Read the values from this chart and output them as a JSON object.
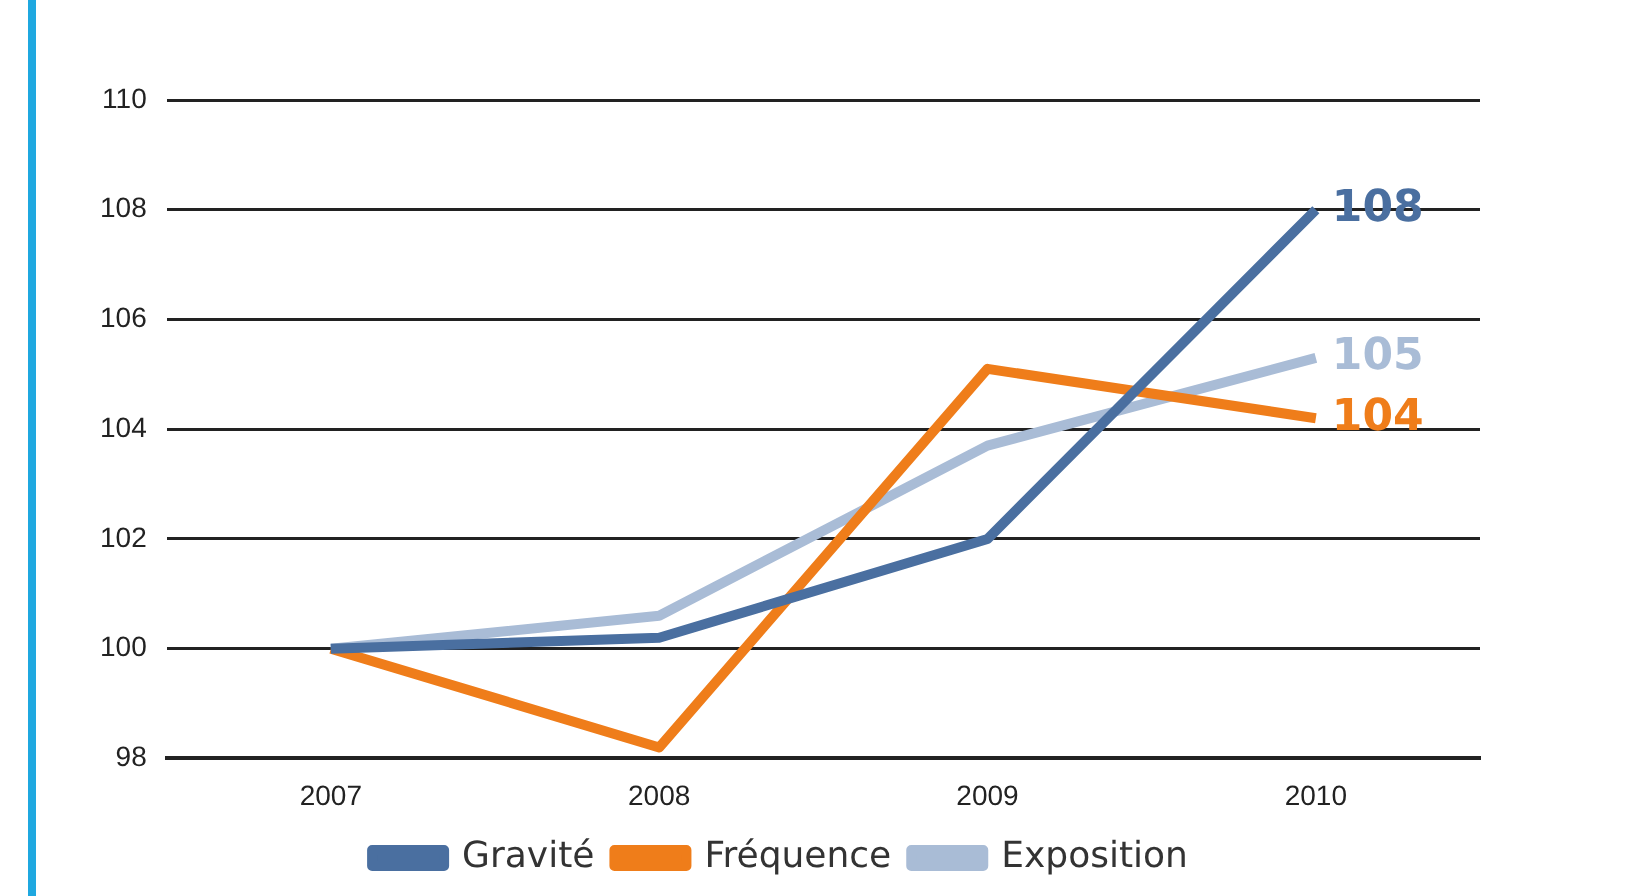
{
  "chart_data": {
    "type": "line",
    "categories": [
      "2007",
      "2008",
      "2009",
      "2010"
    ],
    "series": [
      {
        "name": "Gravité",
        "color": "#4a6fa0",
        "values": [
          100,
          100.2,
          102,
          108
        ],
        "value_labels": [
          null,
          null,
          null,
          "108"
        ]
      },
      {
        "name": "Fréquence",
        "color": "#ef7d1a",
        "values": [
          100,
          98.2,
          105.1,
          104.2
        ],
        "value_labels": [
          null,
          null,
          null,
          "104"
        ]
      },
      {
        "name": "Exposition",
        "color": "#a9bcd6",
        "values": [
          100,
          100.6,
          103.7,
          105.3
        ],
        "value_labels": [
          null,
          null,
          null,
          "105"
        ]
      }
    ],
    "ylim": [
      98,
      110
    ],
    "yticks": [
      98,
      100,
      102,
      104,
      106,
      108,
      110
    ],
    "grid": "y",
    "legend": "bottom",
    "marker": "none",
    "line_style": "solid"
  }
}
